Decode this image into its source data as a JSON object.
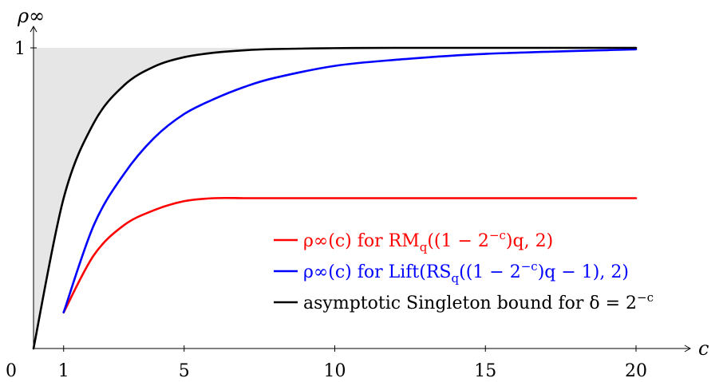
{
  "chart_data": {
    "type": "line",
    "title": "",
    "xlabel": "c",
    "ylabel": "ρ∞",
    "xlim": [
      0,
      21.8
    ],
    "ylim": [
      0,
      1.05
    ],
    "x_ticks": [
      {
        "value": 1,
        "label": "1"
      },
      {
        "value": 5,
        "label": "5"
      },
      {
        "value": 10,
        "label": "10"
      },
      {
        "value": 15,
        "label": "15"
      },
      {
        "value": 20,
        "label": "20"
      }
    ],
    "y_ticks": [
      {
        "value": 1,
        "label": "1"
      }
    ],
    "origin_label": "0",
    "grid": false,
    "legend_position": "bottom-right",
    "shaded_region": {
      "between": "asymptotic Singleton bound and y = 1",
      "color": "#e6e6e6"
    },
    "series": [
      {
        "name": "ρ∞(c) for RMq((1 − 2^−c)q, 2)",
        "color": "#ff0000",
        "x": [
          1,
          2,
          3,
          4,
          5,
          6,
          7,
          8,
          10,
          12,
          15,
          20
        ],
        "y": [
          0.12,
          0.31,
          0.41,
          0.46,
          0.49,
          0.5,
          0.5,
          0.5,
          0.5,
          0.5,
          0.5,
          0.5
        ]
      },
      {
        "name": "ρ∞(c) for Lift(RSq((1 − 2^−c)q − 1), 2)",
        "color": "#0000ff",
        "x": [
          1,
          2,
          3,
          4,
          5,
          6,
          7,
          8,
          10,
          12,
          15,
          20
        ],
        "y": [
          0.12,
          0.41,
          0.58,
          0.7,
          0.78,
          0.83,
          0.87,
          0.9,
          0.94,
          0.96,
          0.98,
          0.995
        ]
      },
      {
        "name": "asymptotic Singleton bound for δ = 2^−c",
        "color": "#000000",
        "x": [
          0,
          1,
          2,
          3,
          4,
          5,
          6,
          7,
          8,
          10,
          12,
          15,
          20
        ],
        "y": [
          0,
          0.5,
          0.75,
          0.875,
          0.9375,
          0.969,
          0.984,
          0.992,
          0.996,
          0.999,
          1.0,
          1.0,
          1.0
        ]
      }
    ]
  },
  "legend": [
    {
      "color": "#ff0000",
      "prefix": "ρ∞(c) for RM",
      "sub": "q",
      "suffix": "((1 − 2",
      "sup": "−c",
      "tail": ")q, 2)"
    },
    {
      "color": "#0000ff",
      "prefix": "ρ∞(c) for Lift(RS",
      "sub": "q",
      "suffix": "((1 − 2",
      "sup": "−c",
      "tail": ")q − 1), 2)"
    },
    {
      "color": "#000000",
      "prefix": "asymptotic Singleton bound for δ = 2",
      "sub": "",
      "suffix": "",
      "sup": "−c",
      "tail": ""
    }
  ]
}
